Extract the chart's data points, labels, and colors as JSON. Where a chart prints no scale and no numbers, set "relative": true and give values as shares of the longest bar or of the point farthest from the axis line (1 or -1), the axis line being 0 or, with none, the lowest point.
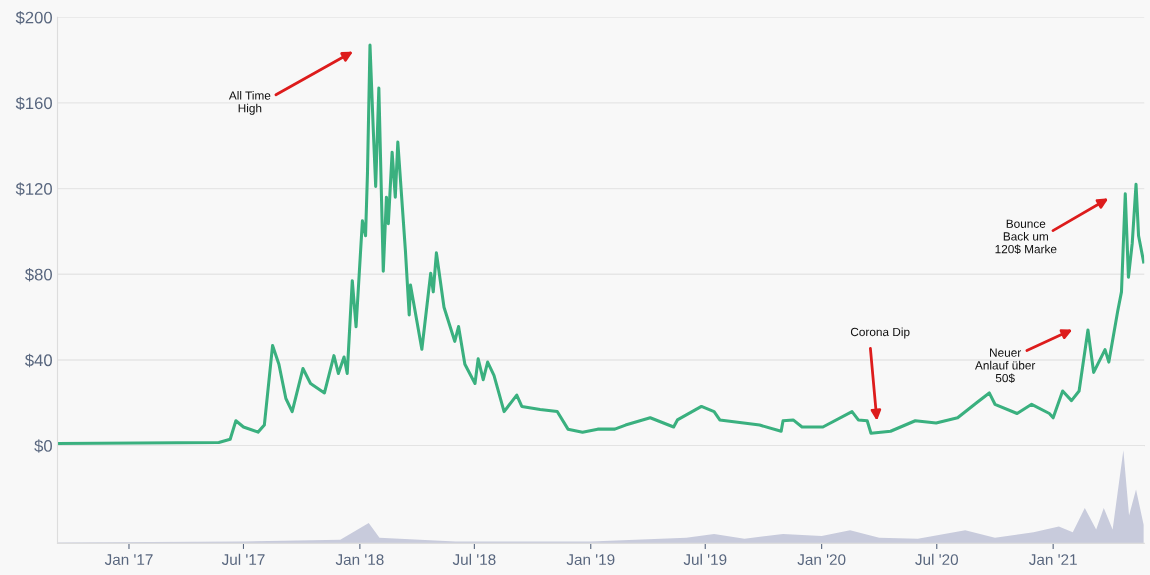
{
  "chart_data": [
    {
      "type": "line",
      "color": "#3ab07f",
      "x": [
        "2016-09-10",
        "2017-05-23",
        "2017-06-10",
        "2017-06-19",
        "2017-07-01",
        "2017-07-24",
        "2017-08-03",
        "2017-08-16",
        "2017-08-26",
        "2017-09-06",
        "2017-09-16",
        "2017-10-03",
        "2017-10-15",
        "2017-11-06",
        "2017-11-21",
        "2017-11-28",
        "2017-12-07",
        "2017-12-12",
        "2017-12-20",
        "2017-12-26",
        "2018-01-05",
        "2018-01-10",
        "2018-01-13",
        "2018-01-17",
        "2018-01-22",
        "2018-01-26",
        "2018-01-31",
        "2018-02-07",
        "2018-02-12",
        "2018-02-15",
        "2018-02-21",
        "2018-02-26",
        "2018-03-02",
        "2018-03-14",
        "2018-03-20",
        "2018-03-22",
        "2018-04-09",
        "2018-04-23",
        "2018-04-27",
        "2018-05-02",
        "2018-05-14",
        "2018-05-31",
        "2018-06-06",
        "2018-06-16",
        "2018-07-02",
        "2018-07-07",
        "2018-07-15",
        "2018-07-22",
        "2018-08-01",
        "2018-08-17",
        "2018-09-06",
        "2018-09-14",
        "2018-10-13",
        "2018-11-09",
        "2018-11-26",
        "2018-12-19",
        "2019-01-12",
        "2019-02-08",
        "2019-02-25",
        "2019-04-05",
        "2019-05-12",
        "2019-05-18",
        "2019-06-25",
        "2019-07-15",
        "2019-07-24",
        "2019-09-25",
        "2019-10-29",
        "2019-11-01",
        "2019-11-17",
        "2019-12-01",
        "2020-01-03",
        "2020-02-18",
        "2020-02-28",
        "2020-03-13",
        "2020-03-19",
        "2020-04-19",
        "2020-05-28",
        "2020-06-30",
        "2020-08-03",
        "2020-09-02",
        "2020-09-22",
        "2020-10-01",
        "2020-11-05",
        "2020-11-28",
        "2020-12-26",
        "2021-01-01",
        "2021-01-16",
        "2021-01-30",
        "2021-02-11",
        "2021-02-25",
        "2021-03-06",
        "2021-03-24",
        "2021-03-30",
        "2021-04-13",
        "2021-04-19",
        "2021-04-25",
        "2021-04-30",
        "2021-05-06",
        "2021-05-12",
        "2021-05-16",
        "2021-05-24"
      ],
      "values": [
        1,
        1.5,
        3,
        11.6,
        8.7,
        6.3,
        9.6,
        46.7,
        38,
        22,
        15.9,
        36,
        29,
        24.6,
        42,
        33.7,
        41.4,
        33.7,
        77,
        55.5,
        105,
        98,
        127,
        187,
        149,
        121,
        167,
        81.4,
        116,
        103.6,
        137,
        116,
        141.7,
        91,
        61,
        75,
        45,
        80.5,
        71.8,
        90,
        64.6,
        48.7,
        55.6,
        38,
        29,
        40.5,
        30.8,
        39,
        32.8,
        15.9,
        23.6,
        18.3,
        16.9,
        15.9,
        7.7,
        6.3,
        7.7,
        7.7,
        9.6,
        13,
        8.7,
        12,
        18.3,
        15.9,
        12,
        9.6,
        6.7,
        11.6,
        12,
        8.7,
        8.7,
        15.9,
        12,
        11.6,
        5.8,
        6.7,
        11.6,
        10.6,
        13,
        20,
        24.6,
        19.3,
        15,
        19.3,
        15,
        13,
        25.5,
        21,
        25.5,
        54,
        34.2,
        44.8,
        39,
        62.7,
        71.8,
        117.6,
        78.6,
        94.5,
        122,
        98,
        85.8
      ],
      "xlim": [
        "2016-09-10",
        "2021-05-25"
      ],
      "ylim": [
        0,
        200
      ],
      "yticks": [
        {
          "value": 0,
          "label": "$0"
        },
        {
          "value": 40,
          "label": "$40"
        },
        {
          "value": 80,
          "label": "$80"
        },
        {
          "value": 120,
          "label": "$120"
        },
        {
          "value": 160,
          "label": "$160"
        },
        {
          "value": 200,
          "label": "$200"
        }
      ],
      "grid": "y",
      "tick_labels": "y",
      "annotations": [
        "All Time\nHigh",
        "Corona Dip",
        "Neuer\nAnlauf über\n50$",
        "Bounce\nBack um\n120$ Marke"
      ]
    },
    {
      "type": "area",
      "relative": true,
      "color": "#c8cbdc",
      "x": [
        "2016-09-10",
        "2017-07-01",
        "2017-12-01",
        "2018-01-15",
        "2018-02-01",
        "2018-06-01",
        "2019-01-01",
        "2019-06-01",
        "2019-07-15",
        "2019-09-01",
        "2019-11-01",
        "2020-01-01",
        "2020-02-15",
        "2020-04-01",
        "2020-06-01",
        "2020-08-15",
        "2020-10-01",
        "2020-12-01",
        "2021-01-10",
        "2021-02-01",
        "2021-02-20",
        "2021-03-10",
        "2021-03-22",
        "2021-04-05",
        "2021-04-22",
        "2021-05-01",
        "2021-05-12",
        "2021-05-24"
      ],
      "values": [
        0.01,
        0.02,
        0.04,
        0.22,
        0.06,
        0.02,
        0.02,
        0.06,
        0.1,
        0.05,
        0.1,
        0.08,
        0.14,
        0.06,
        0.05,
        0.14,
        0.06,
        0.12,
        0.18,
        0.12,
        0.38,
        0.15,
        0.38,
        0.15,
        1,
        0.3,
        0.58,
        0.2
      ],
      "xlim": [
        "2016-09-10",
        "2021-05-25"
      ],
      "xticks": [
        {
          "value": "2017-01-01",
          "label": "Jan '17"
        },
        {
          "value": "2017-07-01",
          "label": "Jul '17"
        },
        {
          "value": "2018-01-01",
          "label": "Jan '18"
        },
        {
          "value": "2018-07-01",
          "label": "Jul '18"
        },
        {
          "value": "2019-01-01",
          "label": "Jan '19"
        },
        {
          "value": "2019-07-01",
          "label": "Jul '19"
        },
        {
          "value": "2020-01-01",
          "label": "Jan '20"
        },
        {
          "value": "2020-07-01",
          "label": "Jul '20"
        },
        {
          "value": "2021-01-01",
          "label": "Jan '21"
        }
      ],
      "tick_labels": "x"
    }
  ]
}
